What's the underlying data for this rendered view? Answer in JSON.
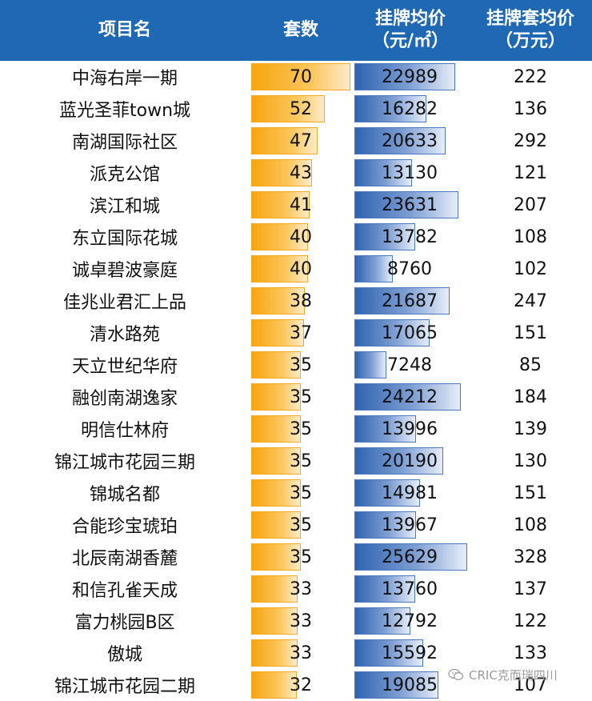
{
  "headers": {
    "name": "项目名",
    "count": "套数",
    "avg_price_line1": "挂牌均价",
    "avg_price_line2": "（元/㎡）",
    "total_price_line1": "挂牌套均价",
    "total_price_line2": "（万元）"
  },
  "colors": {
    "header_bg": "#1f68b4",
    "count_bar": "#f7a50f",
    "avg_bar": "#2f63b0"
  },
  "chart_data": {
    "type": "table",
    "columns": [
      "项目名",
      "套数",
      "挂牌均价（元/㎡）",
      "挂牌套均价（万元）"
    ],
    "count_max": 70,
    "avg_price_max": 25629,
    "rows": [
      {
        "name": "中海右岸一期",
        "count": 70,
        "avg_price": 22989,
        "total_price": 222
      },
      {
        "name": "蓝光圣菲town城",
        "count": 52,
        "avg_price": 16282,
        "total_price": 136
      },
      {
        "name": "南湖国际社区",
        "count": 47,
        "avg_price": 20633,
        "total_price": 292
      },
      {
        "name": "派克公馆",
        "count": 43,
        "avg_price": 13130,
        "total_price": 121
      },
      {
        "name": "滨江和城",
        "count": 41,
        "avg_price": 23631,
        "total_price": 207
      },
      {
        "name": "东立国际花城",
        "count": 40,
        "avg_price": 13782,
        "total_price": 108
      },
      {
        "name": "诚卓碧波豪庭",
        "count": 40,
        "avg_price": 8760,
        "total_price": 102
      },
      {
        "name": "佳兆业君汇上品",
        "count": 38,
        "avg_price": 21687,
        "total_price": 247
      },
      {
        "name": "清水路苑",
        "count": 37,
        "avg_price": 17065,
        "total_price": 151
      },
      {
        "name": "天立世纪华府",
        "count": 35,
        "avg_price": 7248,
        "total_price": 85
      },
      {
        "name": "融创南湖逸家",
        "count": 35,
        "avg_price": 24212,
        "total_price": 184
      },
      {
        "name": "明信仕林府",
        "count": 35,
        "avg_price": 13996,
        "total_price": 139
      },
      {
        "name": "锦江城市花园三期",
        "count": 35,
        "avg_price": 20190,
        "total_price": 130
      },
      {
        "name": "锦城名都",
        "count": 35,
        "avg_price": 14981,
        "total_price": 151
      },
      {
        "name": "合能珍宝琥珀",
        "count": 35,
        "avg_price": 13967,
        "total_price": 108
      },
      {
        "name": "北辰南湖香麓",
        "count": 35,
        "avg_price": 25629,
        "total_price": 328
      },
      {
        "name": "和信孔雀天成",
        "count": 33,
        "avg_price": 13760,
        "total_price": 137
      },
      {
        "name": "富力桃园B区",
        "count": 33,
        "avg_price": 12792,
        "total_price": 122
      },
      {
        "name": "傲城",
        "count": 33,
        "avg_price": 15592,
        "total_price": 133
      },
      {
        "name": "锦江城市花园二期",
        "count": 32,
        "avg_price": 19085,
        "total_price": 107
      }
    ]
  },
  "watermark": {
    "icon": "wechat-icon",
    "text": "CRIC克而瑞四川"
  }
}
